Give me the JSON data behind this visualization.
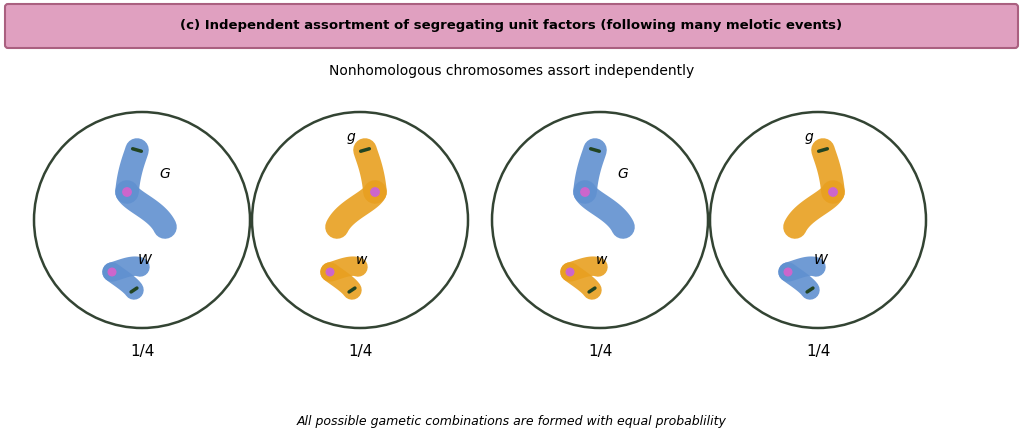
{
  "title_text": "(c) Independent assortment of segregating unit factors (following many melotic events)",
  "subtitle_text": "Nonhomologous chromosomes assort independently",
  "footer_text": "All possible gametic combinations are formed with equal probablility",
  "cells": [
    {
      "label": "1/4",
      "upper_gene": "G",
      "lower_gene": "W",
      "upper_color": "blue",
      "lower_color": "blue"
    },
    {
      "label": "1/4",
      "upper_gene": "g",
      "lower_gene": "w",
      "upper_color": "orange",
      "lower_color": "orange"
    },
    {
      "label": "1/4",
      "upper_gene": "G",
      "lower_gene": "w",
      "upper_color": "blue",
      "lower_color": "orange"
    },
    {
      "label": "1/4",
      "upper_gene": "g",
      "lower_gene": "W",
      "upper_color": "orange",
      "lower_color": "blue"
    }
  ],
  "blue_color": "#6090D0",
  "orange_color": "#E8A020",
  "centromere_color": "#CC66CC",
  "kinetochore_color": "#224422",
  "title_bg_color": "#E0A0C0",
  "title_border_color": "#AA6080",
  "cell_border_color": "#334433",
  "background_color": "#FFFFFF"
}
